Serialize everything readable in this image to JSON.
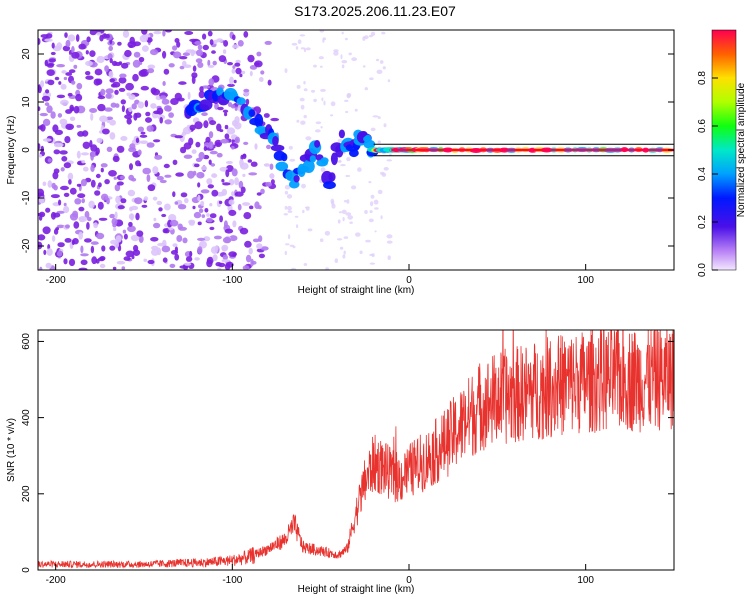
{
  "figure_title": "S173.2025.206.11.23.E07",
  "chart_data": [
    {
      "type": "heatmap",
      "title": "S173.2025.206.11.23.E07",
      "xlabel": "Height of straight line (km)",
      "ylabel": "Frequency (Hz)",
      "xlim": [
        -210,
        150
      ],
      "ylim": [
        -25,
        25
      ],
      "xticks": [
        -200,
        -100,
        0,
        100
      ],
      "yticks": [
        -20,
        -10,
        0,
        10,
        20
      ],
      "colorbar": {
        "label": "Normalized spectral amplitude",
        "range": [
          0,
          1
        ],
        "ticks": [
          0.0,
          0.2,
          0.4,
          0.6,
          0.8
        ]
      },
      "line_ridge": {
        "name": "",
        "x": [
          -125,
          -115,
          -105,
          -95,
          -85,
          -78,
          -72,
          -65,
          -58,
          -52,
          -45,
          -38,
          -32,
          -28,
          -24,
          -20,
          -15,
          -10,
          -5,
          0,
          10,
          30,
          50,
          70,
          90,
          110,
          130,
          150
        ],
        "y": [
          9,
          10,
          11,
          9,
          6,
          2,
          -2,
          -6,
          -3,
          1,
          -6,
          3,
          -1,
          3,
          2,
          0,
          0,
          0,
          0,
          0,
          0,
          0,
          0,
          0,
          0,
          0,
          0,
          0
        ]
      },
      "horizontal_lines_hz": [
        1.2,
        -1.2
      ],
      "grid": false
    },
    {
      "type": "line",
      "xlabel": "Height of straight line (km)",
      "ylabel": "SNR (10 * v/v)",
      "xlim": [
        -210,
        150
      ],
      "ylim": [
        0,
        630
      ],
      "xticks": [
        -200,
        -100,
        0,
        100
      ],
      "yticks": [
        0,
        200,
        400,
        600
      ],
      "grid": false,
      "series": [
        {
          "name": "",
          "color": "#e8322e",
          "x": [
            -210,
            -190,
            -170,
            -150,
            -130,
            -115,
            -100,
            -90,
            -80,
            -70,
            -65,
            -60,
            -50,
            -40,
            -35,
            -30,
            -25,
            -20,
            -15,
            -10,
            -5,
            0,
            10,
            20,
            30,
            40,
            50,
            60,
            70,
            80,
            90,
            100,
            110,
            120,
            130,
            140,
            150
          ],
          "y": [
            15,
            15,
            15,
            15,
            18,
            20,
            25,
            35,
            55,
            80,
            120,
            60,
            50,
            40,
            55,
            150,
            230,
            280,
            270,
            250,
            240,
            260,
            290,
            330,
            380,
            430,
            450,
            460,
            470,
            480,
            490,
            495,
            500,
            505,
            500,
            505,
            510
          ]
        }
      ],
      "annotations": [
        {
          "x": -17,
          "y": 555,
          "label": ""
        }
      ]
    }
  ],
  "colors": {
    "trace": "#e8322e",
    "scatter_dots": "#7a1fe0",
    "background": "#ffffff"
  }
}
